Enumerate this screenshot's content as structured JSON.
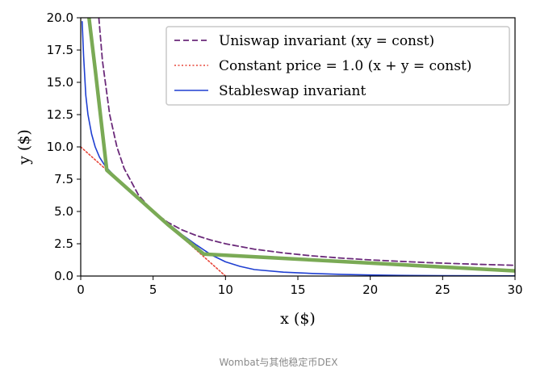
{
  "caption": "Wombat与其他稳定币DEX",
  "chart_data": {
    "type": "line",
    "xlabel": "x ($)",
    "ylabel": "y ($)",
    "xlim": [
      0,
      30
    ],
    "ylim": [
      0,
      20
    ],
    "xticks": [
      0,
      5,
      10,
      15,
      20,
      25,
      30
    ],
    "yticks": [
      0.0,
      2.5,
      5.0,
      7.5,
      10.0,
      12.5,
      15.0,
      17.5,
      20.0
    ],
    "xtick_labels": [
      "0",
      "5",
      "10",
      "15",
      "20",
      "25",
      "30"
    ],
    "ytick_labels": [
      "0.0",
      "2.5",
      "5.0",
      "7.5",
      "10.0",
      "12.5",
      "15.0",
      "17.5",
      "20.0"
    ],
    "legend_position": "top-right",
    "grid": false,
    "series": [
      {
        "name": "Uniswap invariant (xy = const)",
        "color": "#6b2a7a",
        "style": "dashed",
        "x": [
          1.25,
          1.5,
          2,
          2.5,
          3,
          4,
          5,
          6,
          7,
          8,
          9,
          10,
          12,
          14,
          16,
          18,
          20,
          22,
          24,
          26,
          28,
          30
        ],
        "y": [
          20.0,
          16.67,
          12.5,
          10.0,
          8.33,
          6.25,
          5.0,
          4.17,
          3.57,
          3.13,
          2.78,
          2.5,
          2.08,
          1.79,
          1.56,
          1.39,
          1.25,
          1.14,
          1.04,
          0.96,
          0.89,
          0.83
        ]
      },
      {
        "name": "Constant price = 1.0 (x + y = const)",
        "color": "#e8463a",
        "style": "dotted",
        "x": [
          0,
          10
        ],
        "y": [
          10,
          0
        ]
      },
      {
        "name": "Stableswap invariant",
        "color": "#1f3fd1",
        "style": "solid",
        "x": [
          0.1,
          0.2,
          0.35,
          0.5,
          0.75,
          1.0,
          1.3,
          1.7,
          2.2,
          3,
          4,
          5,
          6,
          7,
          8,
          9,
          10,
          11,
          12,
          14,
          16,
          18,
          20,
          22,
          25,
          28,
          30
        ],
        "y": [
          19.7,
          17.0,
          14.0,
          12.5,
          11.0,
          10.0,
          9.2,
          8.5,
          7.9,
          6.9,
          5.9,
          5.0,
          4.1,
          3.2,
          2.4,
          1.65,
          1.1,
          0.75,
          0.5,
          0.3,
          0.2,
          0.13,
          0.08,
          0.05,
          0.03,
          0.02,
          0.015
        ]
      },
      {
        "name": "",
        "color": "#7aaa55",
        "style": "solid-thick",
        "x": [
          0.55,
          1.0,
          1.8,
          4,
          6,
          8.5,
          30
        ],
        "y": [
          20.2,
          16.0,
          8.2,
          6.0,
          4.0,
          1.7,
          0.4
        ]
      }
    ]
  }
}
